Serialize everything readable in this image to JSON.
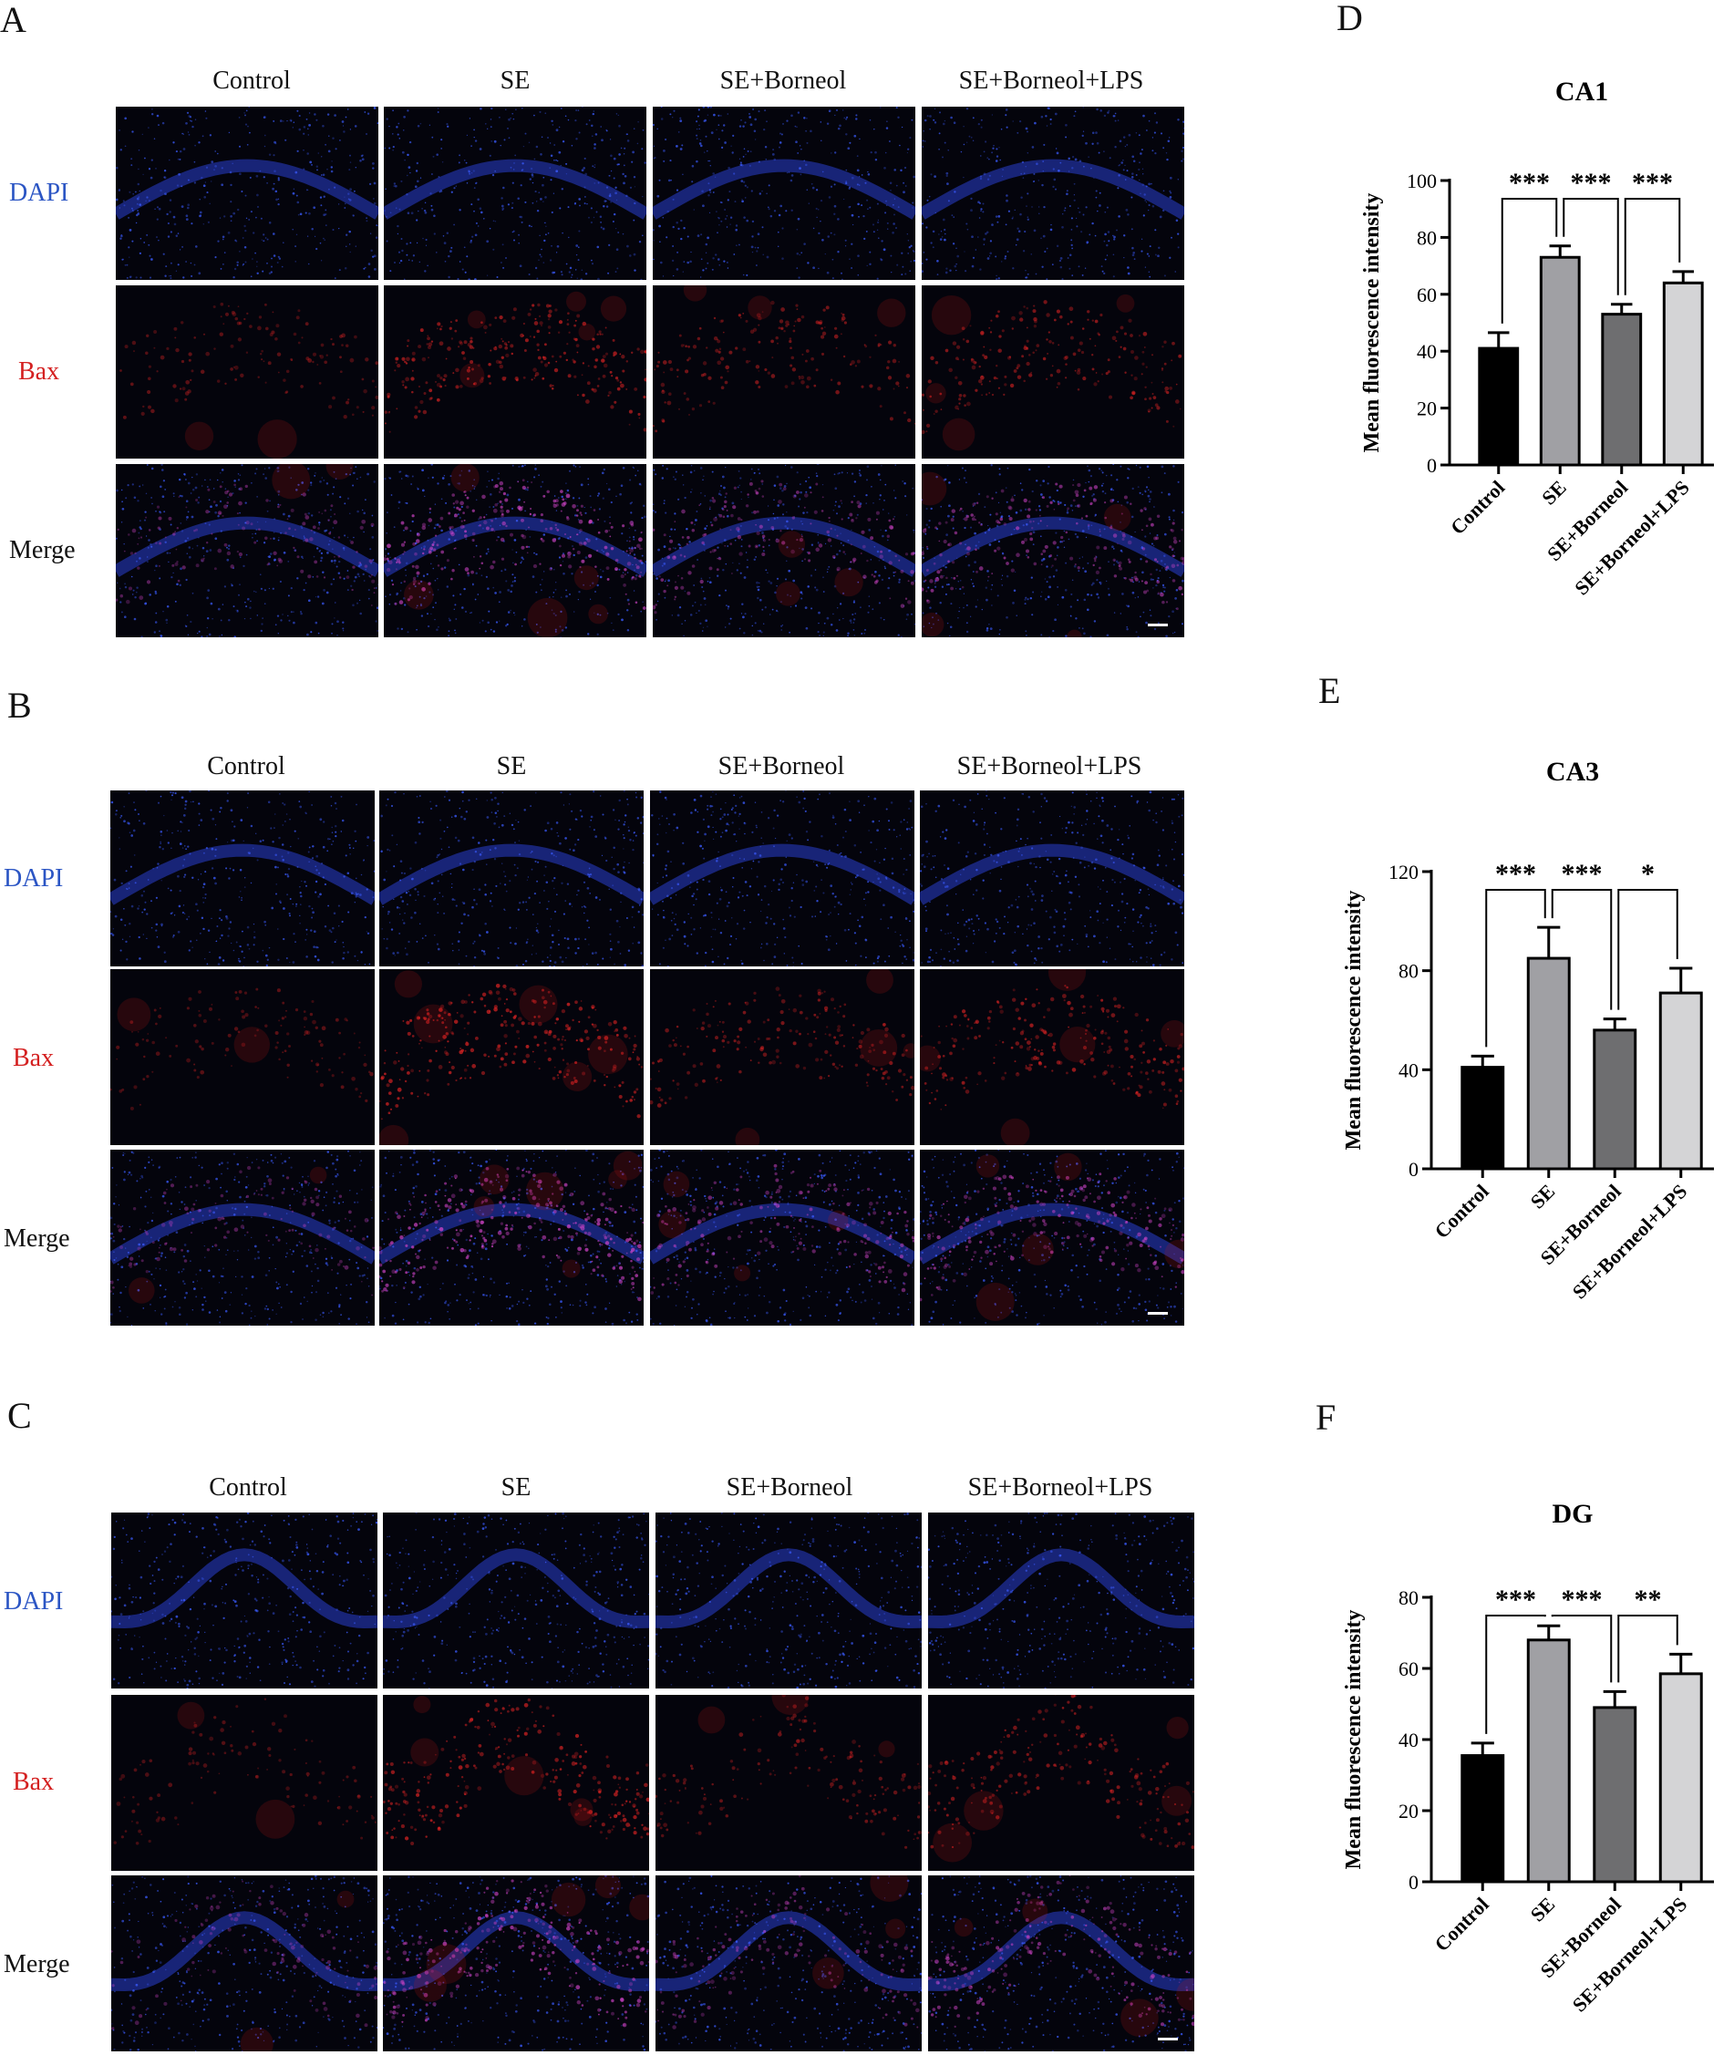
{
  "panels": {
    "A": "A",
    "B": "B",
    "C": "C",
    "D": "D",
    "E": "E",
    "F": "F"
  },
  "groups": [
    "Control",
    "SE",
    "SE+Borneol",
    "SE+Borneol+LPS"
  ],
  "rows": [
    "DAPI",
    "Bax",
    "Merge"
  ],
  "colors": {
    "dapi": "#2b55c4",
    "bax": "#d42020",
    "bars": [
      "#000000",
      "#a0a0a4",
      "#6e6e70",
      "#d4d4d6"
    ]
  },
  "chart_data": [
    {
      "type": "bar",
      "panel": "D",
      "title": "CA1",
      "ylabel": "Mean fluorescence intensity",
      "categories": [
        "Control",
        "SE",
        "SE+Borneol",
        "SE+Borneol+LPS"
      ],
      "values": [
        41,
        73,
        53,
        64
      ],
      "errors": [
        5.5,
        4,
        3.5,
        4
      ],
      "ylim": [
        0,
        100
      ],
      "yticks": [
        0,
        20,
        40,
        60,
        80,
        100
      ],
      "significance": [
        {
          "from": 0,
          "to": 1,
          "label": "***"
        },
        {
          "from": 1,
          "to": 2,
          "label": "***"
        },
        {
          "from": 2,
          "to": 3,
          "label": "***"
        }
      ]
    },
    {
      "type": "bar",
      "panel": "E",
      "title": "CA3",
      "ylabel": "Mean fluorescence intensity",
      "categories": [
        "Control",
        "SE",
        "SE+Borneol",
        "SE+Borneol+LPS"
      ],
      "values": [
        41,
        85,
        56,
        71
      ],
      "errors": [
        4.5,
        12.5,
        4.5,
        10
      ],
      "ylim": [
        0,
        120
      ],
      "yticks": [
        0,
        40,
        80,
        120
      ],
      "significance": [
        {
          "from": 0,
          "to": 1,
          "label": "***"
        },
        {
          "from": 1,
          "to": 2,
          "label": "***"
        },
        {
          "from": 2,
          "to": 3,
          "label": "*"
        }
      ]
    },
    {
      "type": "bar",
      "panel": "F",
      "title": "DG",
      "ylabel": "Mean fluorescence intensity",
      "categories": [
        "Control",
        "SE",
        "SE+Borneol",
        "SE+Borneol+LPS"
      ],
      "values": [
        35.5,
        68,
        49,
        58.5
      ],
      "errors": [
        3.5,
        4,
        4.5,
        5.5
      ],
      "ylim": [
        0,
        80
      ],
      "yticks": [
        0,
        20,
        40,
        60,
        80
      ],
      "significance": [
        {
          "from": 0,
          "to": 1,
          "label": "***"
        },
        {
          "from": 1,
          "to": 2,
          "label": "***"
        },
        {
          "from": 2,
          "to": 3,
          "label": "**"
        }
      ]
    }
  ]
}
